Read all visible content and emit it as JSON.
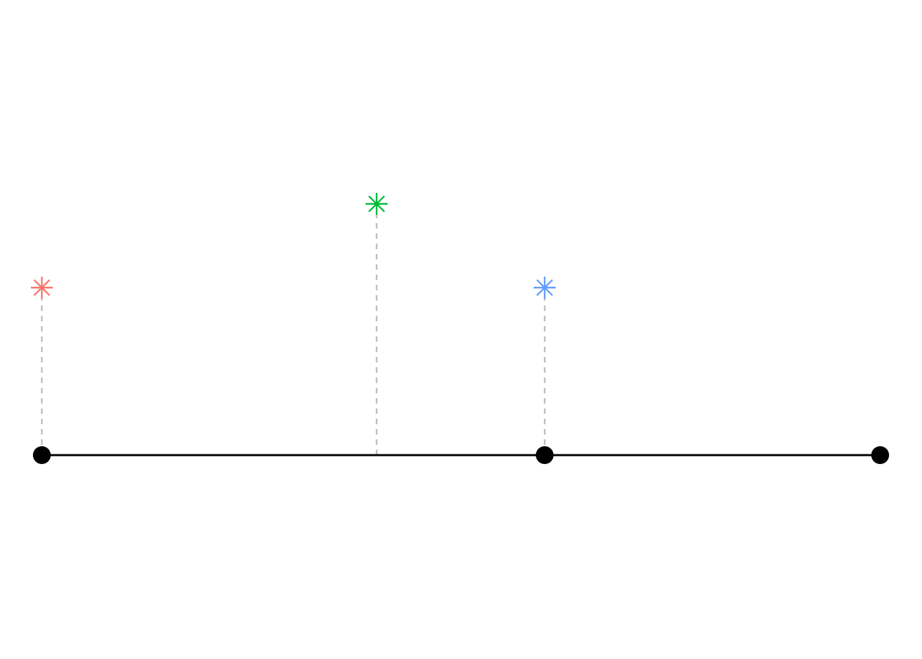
{
  "diagram": {
    "kind": "timeline",
    "baseline_color": "#000000",
    "node_color": "#000000",
    "connector_color": "#bebebe",
    "nodes": [
      {
        "id": "node-1"
      },
      {
        "id": "node-2"
      },
      {
        "id": "node-3"
      }
    ],
    "events": [
      {
        "id": "event-1",
        "color": "#f8766d",
        "icon": "asterisk-icon",
        "relative_height": 2
      },
      {
        "id": "event-2",
        "color": "#00ba38",
        "icon": "asterisk-icon",
        "relative_height": 3
      },
      {
        "id": "event-3",
        "color": "#619cff",
        "icon": "asterisk-icon",
        "relative_height": 2
      }
    ]
  }
}
